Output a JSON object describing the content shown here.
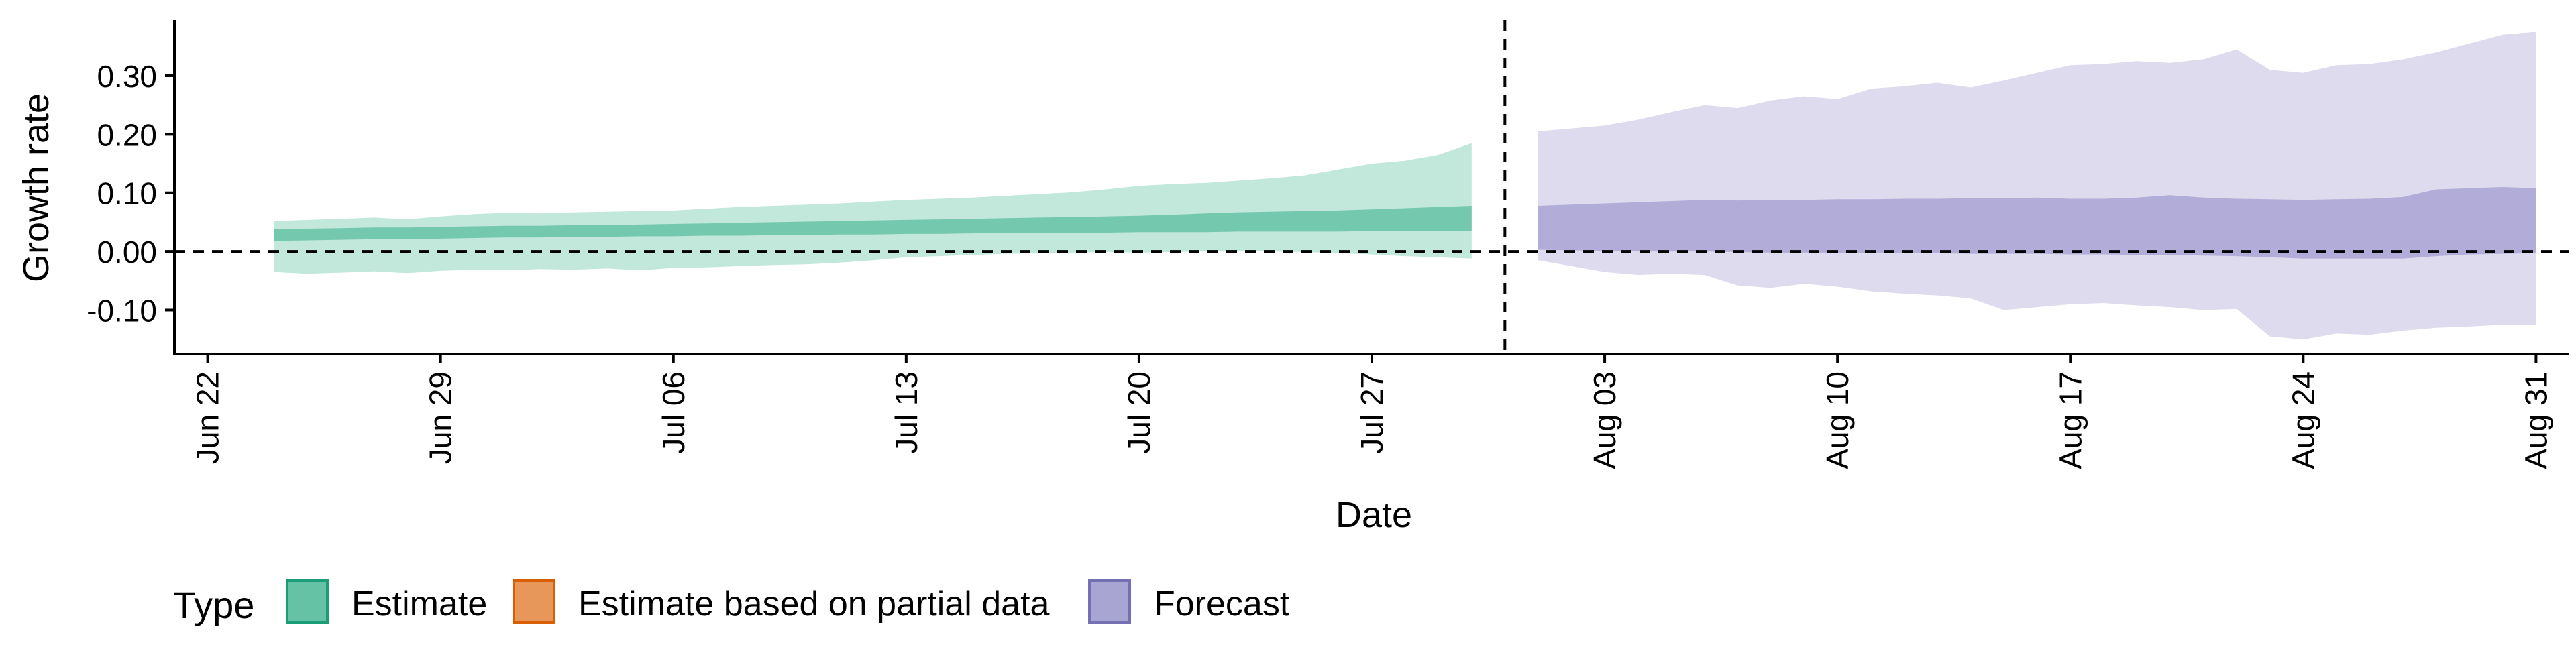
{
  "chart_data": {
    "type": "area",
    "title": "",
    "xlabel": "Date",
    "ylabel": "Growth rate",
    "x_tick_labels": [
      "Jun 22",
      "Jun 29",
      "Jul 06",
      "Jul 13",
      "Jul 20",
      "Jul 27",
      "Aug 03",
      "Aug 10",
      "Aug 17",
      "Aug 24",
      "Aug 31"
    ],
    "x_tick_dates": [
      "2020-06-22",
      "2020-06-29",
      "2020-07-06",
      "2020-07-13",
      "2020-07-20",
      "2020-07-27",
      "2020-08-03",
      "2020-08-10",
      "2020-08-17",
      "2020-08-24",
      "2020-08-31"
    ],
    "xlim": [
      "2020-06-21",
      "2020-09-01"
    ],
    "y_ticks": [
      -0.1,
      0.0,
      0.1,
      0.2,
      0.3
    ],
    "y_tick_labels": [
      "-0.10",
      "0.00",
      "0.10",
      "0.20",
      "0.30"
    ],
    "ylim": [
      -0.175,
      0.395
    ],
    "reference_lines": {
      "horizontal_y": 0.0,
      "vertical_date": "2020-07-31",
      "style": "dashed"
    },
    "legend": {
      "title": "Type",
      "position": "bottom-left",
      "entries": [
        {
          "label": "Estimate",
          "fill": "#66c2a5",
          "stroke": "#1b9e77"
        },
        {
          "label": "Estimate based on partial data",
          "fill": "#e8975a",
          "stroke": "#d95f02"
        },
        {
          "label": "Forecast",
          "fill": "#a9a5d3",
          "stroke": "#7570b3"
        }
      ]
    },
    "series": [
      {
        "name": "Estimate",
        "color": "#66c2a5",
        "x": [
          "2020-06-24",
          "2020-06-25",
          "2020-06-26",
          "2020-06-27",
          "2020-06-28",
          "2020-06-29",
          "2020-06-30",
          "2020-07-01",
          "2020-07-02",
          "2020-07-03",
          "2020-07-04",
          "2020-07-05",
          "2020-07-06",
          "2020-07-07",
          "2020-07-08",
          "2020-07-09",
          "2020-07-10",
          "2020-07-11",
          "2020-07-12",
          "2020-07-13",
          "2020-07-14",
          "2020-07-15",
          "2020-07-16",
          "2020-07-17",
          "2020-07-18",
          "2020-07-19",
          "2020-07-20",
          "2020-07-21",
          "2020-07-22",
          "2020-07-23",
          "2020-07-24",
          "2020-07-25",
          "2020-07-26",
          "2020-07-27",
          "2020-07-28",
          "2020-07-29",
          "2020-07-30"
        ],
        "lower_90": [
          -0.035,
          -0.038,
          -0.036,
          -0.034,
          -0.037,
          -0.033,
          -0.031,
          -0.032,
          -0.03,
          -0.031,
          -0.029,
          -0.032,
          -0.028,
          -0.027,
          -0.025,
          -0.023,
          -0.022,
          -0.019,
          -0.015,
          -0.01,
          -0.008,
          -0.006,
          -0.004,
          -0.003,
          -0.002,
          -0.001,
          -0.002,
          -0.001,
          0.0,
          0.001,
          0.0,
          -0.001,
          -0.003,
          -0.005,
          -0.008,
          -0.01,
          -0.012
        ],
        "upper_90": [
          0.052,
          0.054,
          0.056,
          0.058,
          0.055,
          0.06,
          0.064,
          0.066,
          0.065,
          0.067,
          0.068,
          0.069,
          0.07,
          0.073,
          0.076,
          0.078,
          0.08,
          0.082,
          0.085,
          0.088,
          0.09,
          0.092,
          0.095,
          0.098,
          0.101,
          0.106,
          0.112,
          0.115,
          0.117,
          0.121,
          0.125,
          0.13,
          0.14,
          0.15,
          0.155,
          0.165,
          0.185
        ],
        "lower_50": [
          0.018,
          0.019,
          0.02,
          0.021,
          0.021,
          0.022,
          0.023,
          0.024,
          0.024,
          0.025,
          0.025,
          0.026,
          0.026,
          0.027,
          0.027,
          0.028,
          0.028,
          0.029,
          0.029,
          0.03,
          0.03,
          0.031,
          0.031,
          0.032,
          0.032,
          0.032,
          0.033,
          0.033,
          0.033,
          0.034,
          0.034,
          0.034,
          0.034,
          0.035,
          0.035,
          0.035,
          0.035
        ],
        "upper_50": [
          0.038,
          0.039,
          0.04,
          0.041,
          0.041,
          0.042,
          0.043,
          0.044,
          0.044,
          0.045,
          0.045,
          0.046,
          0.047,
          0.048,
          0.049,
          0.05,
          0.051,
          0.052,
          0.053,
          0.054,
          0.055,
          0.056,
          0.057,
          0.058,
          0.059,
          0.06,
          0.061,
          0.063,
          0.065,
          0.067,
          0.068,
          0.069,
          0.07,
          0.072,
          0.074,
          0.076,
          0.078
        ]
      },
      {
        "name": "Forecast",
        "color": "#a9a5d3",
        "x": [
          "2020-08-01",
          "2020-08-02",
          "2020-08-03",
          "2020-08-04",
          "2020-08-05",
          "2020-08-06",
          "2020-08-07",
          "2020-08-08",
          "2020-08-09",
          "2020-08-10",
          "2020-08-11",
          "2020-08-12",
          "2020-08-13",
          "2020-08-14",
          "2020-08-15",
          "2020-08-16",
          "2020-08-17",
          "2020-08-18",
          "2020-08-19",
          "2020-08-20",
          "2020-08-21",
          "2020-08-22",
          "2020-08-23",
          "2020-08-24",
          "2020-08-25",
          "2020-08-26",
          "2020-08-27",
          "2020-08-28",
          "2020-08-29",
          "2020-08-30",
          "2020-08-31"
        ],
        "lower_90": [
          -0.015,
          -0.025,
          -0.035,
          -0.04,
          -0.038,
          -0.04,
          -0.058,
          -0.062,
          -0.055,
          -0.06,
          -0.068,
          -0.072,
          -0.075,
          -0.08,
          -0.1,
          -0.095,
          -0.09,
          -0.088,
          -0.092,
          -0.095,
          -0.1,
          -0.098,
          -0.145,
          -0.15,
          -0.14,
          -0.142,
          -0.135,
          -0.13,
          -0.128,
          -0.125,
          -0.125
        ],
        "upper_90": [
          0.205,
          0.21,
          0.215,
          0.225,
          0.238,
          0.25,
          0.245,
          0.258,
          0.265,
          0.26,
          0.278,
          0.282,
          0.288,
          0.28,
          0.292,
          0.305,
          0.318,
          0.32,
          0.325,
          0.322,
          0.328,
          0.345,
          0.31,
          0.305,
          0.318,
          0.32,
          0.328,
          0.34,
          0.355,
          0.37,
          0.375
        ],
        "lower_50": [
          0.003,
          0.002,
          0.001,
          0.0,
          0.0,
          0.0,
          -0.001,
          -0.002,
          -0.002,
          -0.002,
          -0.003,
          -0.003,
          -0.003,
          -0.004,
          -0.004,
          -0.004,
          -0.005,
          -0.005,
          -0.006,
          -0.006,
          -0.007,
          -0.008,
          -0.01,
          -0.012,
          -0.012,
          -0.012,
          -0.012,
          -0.008,
          -0.005,
          -0.004,
          -0.003
        ],
        "upper_50": [
          0.078,
          0.08,
          0.082,
          0.084,
          0.086,
          0.088,
          0.087,
          0.088,
          0.088,
          0.089,
          0.089,
          0.09,
          0.09,
          0.091,
          0.091,
          0.092,
          0.09,
          0.09,
          0.092,
          0.096,
          0.092,
          0.09,
          0.089,
          0.088,
          0.089,
          0.09,
          0.093,
          0.106,
          0.108,
          0.11,
          0.108
        ]
      }
    ]
  }
}
